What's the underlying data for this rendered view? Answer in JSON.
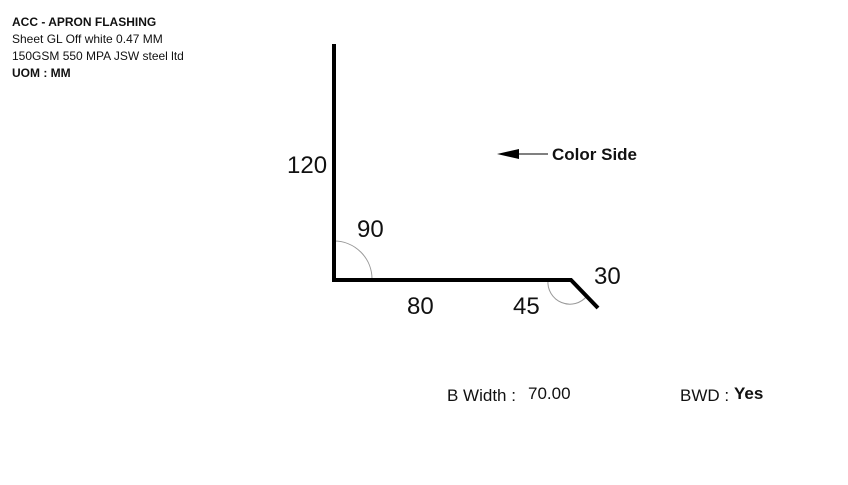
{
  "header": {
    "title": "ACC - APRON FLASHING",
    "material_line1": "Sheet GL Off white 0.47 MM",
    "material_line2": "150GSM 550 MPA JSW steel ltd",
    "uom": "UOM : MM"
  },
  "diagram": {
    "segments": [
      {
        "length": "120"
      },
      {
        "length": "80"
      },
      {
        "length": "30"
      }
    ],
    "angles": [
      {
        "value": "90"
      },
      {
        "value": "45"
      }
    ],
    "color_side_label": "Color Side"
  },
  "footer": {
    "b_width_label": "B Width :",
    "b_width_value": "70.00",
    "bwd_label": "BWD :",
    "bwd_value": "Yes"
  }
}
